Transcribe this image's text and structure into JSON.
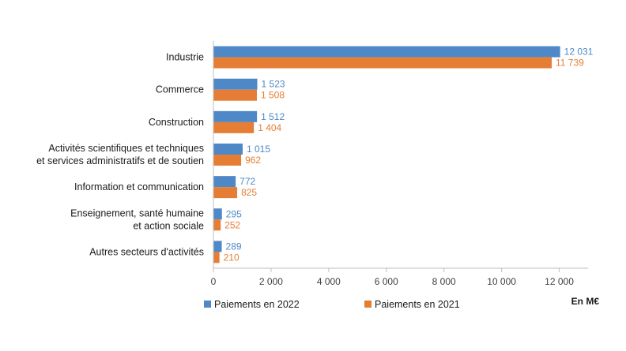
{
  "chart_data": {
    "type": "bar",
    "orientation": "horizontal",
    "categories": [
      [
        "Industrie"
      ],
      [
        "Commerce"
      ],
      [
        "Construction"
      ],
      [
        "Activités scientifiques et techniques",
        "et services administratifs et de soutien"
      ],
      [
        "Information et communication"
      ],
      [
        "Enseignement, santé humaine",
        "et action sociale"
      ],
      [
        "Autres secteurs d'activités"
      ]
    ],
    "series": [
      {
        "name": "Paiements en 2022",
        "color": "#4e88c7",
        "values": [
          12031,
          1523,
          1512,
          1015,
          772,
          295,
          289
        ],
        "labels": [
          "12 031",
          "1 523",
          "1 512",
          "1 015",
          "772",
          "295",
          "289"
        ]
      },
      {
        "name": "Paiements en 2021",
        "color": "#e57e34",
        "values": [
          11739,
          1508,
          1404,
          962,
          825,
          252,
          210
        ],
        "labels": [
          "11 739",
          "1 508",
          "1 404",
          "962",
          "825",
          "252",
          "210"
        ]
      }
    ],
    "xlim": [
      0,
      13000
    ],
    "ticks": [
      0,
      2000,
      4000,
      6000,
      8000,
      10000,
      12000
    ],
    "tick_labels": [
      "0",
      "2 000",
      "4 000",
      "6 000",
      "8 000",
      "10 000",
      "12 000"
    ],
    "unit_label": "En M€",
    "legend_position": "bottom-left",
    "grid": false
  }
}
